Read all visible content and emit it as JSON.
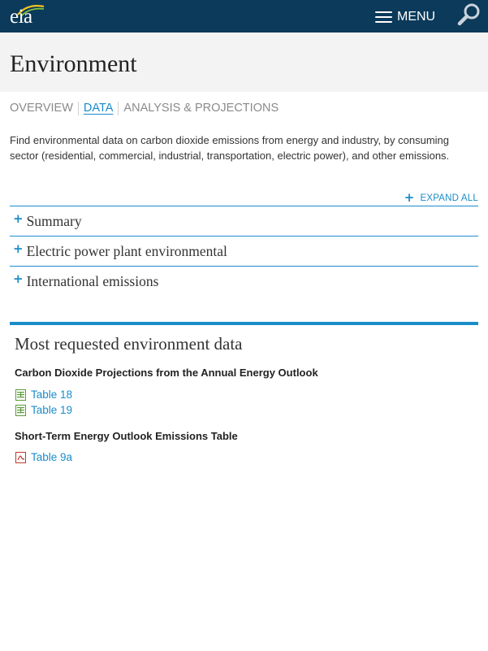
{
  "header": {
    "logo_text": "eia",
    "menu_label": "MENU",
    "colors": {
      "bar": "#0b3a5a",
      "accent": "#1a8cc9"
    }
  },
  "page": {
    "title": "Environment"
  },
  "tabs": [
    {
      "label": "OVERVIEW",
      "active": false
    },
    {
      "label": "DATA",
      "active": true
    },
    {
      "label": "ANALYSIS & PROJECTIONS",
      "active": false
    }
  ],
  "description": "Find environmental data on carbon dioxide emissions from energy and industry, by consuming sector (residential, commercial, industrial, transportation, electric power), and other emissions.",
  "expand_all_label": "EXPAND ALL",
  "accordion": [
    {
      "label": "Summary"
    },
    {
      "label": "Electric power plant environmental"
    },
    {
      "label": "International emissions"
    }
  ],
  "most_requested": {
    "title": "Most requested environment data",
    "groups": [
      {
        "title": "Carbon Dioxide Projections from the Annual Energy Outlook",
        "links": [
          {
            "label": "Table 18",
            "icon": "excel-file-icon"
          },
          {
            "label": "Table 19",
            "icon": "excel-file-icon"
          }
        ]
      },
      {
        "title": "Short-Term Energy Outlook Emissions Table",
        "links": [
          {
            "label": "Table 9a",
            "icon": "pdf-file-icon"
          }
        ]
      }
    ]
  }
}
